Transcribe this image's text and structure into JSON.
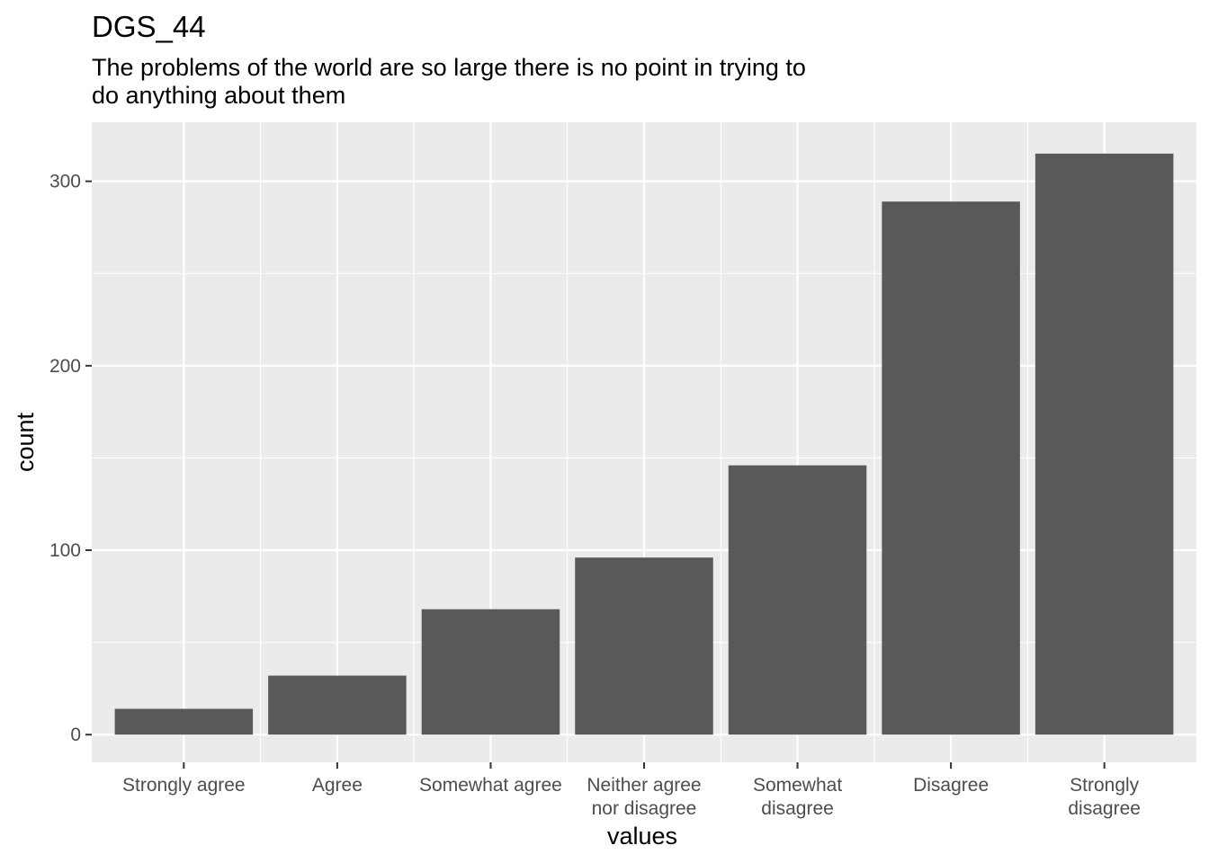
{
  "chart_data": {
    "type": "bar",
    "title": "DGS_44",
    "subtitle_lines": [
      "The problems of the world are so large there is no point in trying to",
      "do anything about them"
    ],
    "xlabel": "values",
    "ylabel": "count",
    "categories": [
      [
        "Strongly agree"
      ],
      [
        "Agree"
      ],
      [
        "Somewhat agree"
      ],
      [
        "Neither agree",
        "nor disagree"
      ],
      [
        "Somewhat",
        "disagree"
      ],
      [
        "Disagree"
      ],
      [
        "Strongly",
        "disagree"
      ]
    ],
    "values": [
      14,
      32,
      68,
      96,
      146,
      289,
      315
    ],
    "ylim": [
      -15,
      332
    ],
    "yticks": [
      0,
      100,
      200,
      300
    ],
    "grid": true,
    "colors": {
      "bar": "#595959",
      "panel": "#ebebeb",
      "grid": "#ffffff"
    }
  }
}
